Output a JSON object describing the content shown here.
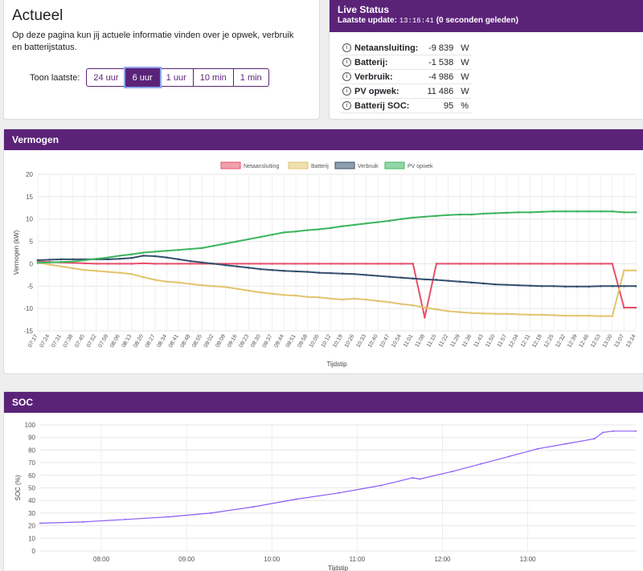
{
  "actueel": {
    "title": "Actueel",
    "description": "Op deze pagina kun jij actuele informatie vinden over je opwek, verbruik en batterijstatus.",
    "range_label": "Toon laatste:",
    "range_buttons": [
      {
        "label": "24 uur",
        "active": false
      },
      {
        "label": "6 uur",
        "active": true
      },
      {
        "label": "1 uur",
        "active": false
      },
      {
        "label": "10 min",
        "active": false
      },
      {
        "label": "1 min",
        "active": false
      }
    ]
  },
  "live": {
    "title": "Live Status",
    "update_label": "Laatste update:",
    "update_time": "13:16:41",
    "update_ago": "(0 seconden geleden)",
    "rows": [
      {
        "label": "Netaansluiting:",
        "value": "-9 839",
        "unit": "W"
      },
      {
        "label": "Batterij:",
        "value": "-1 538",
        "unit": "W"
      },
      {
        "label": "Verbruik:",
        "value": "-4 986",
        "unit": "W"
      },
      {
        "label": "PV opwek:",
        "value": "11 486",
        "unit": "W"
      },
      {
        "label": "Batterij SOC:",
        "value": "95",
        "unit": "%"
      }
    ]
  },
  "vermogen": {
    "title": "Vermogen"
  },
  "soc": {
    "title": "SOC"
  },
  "chart_data": [
    {
      "type": "line",
      "ylabel": "Vermogen (kW)",
      "xlabel": "Tijdstip",
      "ylim": [
        -15,
        20
      ],
      "yticks": [
        -15,
        -10,
        -5,
        0,
        5,
        10,
        15,
        20
      ],
      "grid": true,
      "legend": "top-center",
      "categories": [
        "07:17",
        "07:24",
        "07:31",
        "07:38",
        "07:45",
        "07:52",
        "07:59",
        "08:06",
        "08:13",
        "08:20",
        "08:27",
        "08:34",
        "08:41",
        "08:48",
        "08:55",
        "09:02",
        "09:09",
        "09:16",
        "09:23",
        "09:30",
        "09:37",
        "09:44",
        "09:51",
        "09:58",
        "10:05",
        "10:12",
        "10:19",
        "10:26",
        "10:33",
        "10:40",
        "10:47",
        "10:54",
        "11:01",
        "11:08",
        "11:15",
        "11:22",
        "11:29",
        "11:36",
        "11:43",
        "11:50",
        "11:57",
        "12:04",
        "12:11",
        "12:18",
        "12:25",
        "12:32",
        "12:39",
        "12:46",
        "12:53",
        "13:00",
        "13:07",
        "13:14"
      ],
      "series": [
        {
          "name": "Netaansluiting",
          "color": "#e8506a",
          "values": [
            0.5,
            0.4,
            0.3,
            0.2,
            0.1,
            0.0,
            0.0,
            0.0,
            0.0,
            0.1,
            0.0,
            0.0,
            0.0,
            0.0,
            0.0,
            0.0,
            0.0,
            0.0,
            0.0,
            0.0,
            0.0,
            0.0,
            0.0,
            0.0,
            0.0,
            0.0,
            0.0,
            0.0,
            0.0,
            0.0,
            0.0,
            0.0,
            0.0,
            -12.0,
            0.0,
            0.0,
            0.0,
            0.0,
            0.0,
            0.0,
            0.0,
            0.0,
            0.0,
            0.0,
            0.0,
            0.0,
            0.0,
            0.0,
            0.0,
            0.0,
            -9.8,
            -9.8
          ]
        },
        {
          "name": "Batterij",
          "color": "#e2c46e",
          "values": [
            0.3,
            -0.2,
            -0.6,
            -1.0,
            -1.4,
            -1.6,
            -1.8,
            -2.0,
            -2.3,
            -3.0,
            -3.6,
            -4.0,
            -4.2,
            -4.5,
            -4.8,
            -5.0,
            -5.2,
            -5.6,
            -6.0,
            -6.4,
            -6.7,
            -7.0,
            -7.1,
            -7.4,
            -7.5,
            -7.8,
            -8.0,
            -7.8,
            -8.0,
            -8.3,
            -8.6,
            -9.0,
            -9.3,
            -9.8,
            -10.2,
            -10.6,
            -10.8,
            -11.0,
            -11.1,
            -11.2,
            -11.2,
            -11.3,
            -11.4,
            -11.4,
            -11.5,
            -11.6,
            -11.6,
            -11.6,
            -11.7,
            -11.7,
            -1.5,
            -1.5
          ]
        },
        {
          "name": "Verbruik",
          "color": "#34506e",
          "values": [
            0.8,
            0.9,
            1.0,
            1.0,
            1.0,
            1.0,
            1.0,
            1.1,
            1.3,
            1.8,
            1.7,
            1.4,
            1.0,
            0.6,
            0.3,
            0.0,
            -0.3,
            -0.6,
            -0.9,
            -1.2,
            -1.4,
            -1.6,
            -1.7,
            -1.8,
            -2.0,
            -2.1,
            -2.2,
            -2.3,
            -2.5,
            -2.7,
            -2.9,
            -3.1,
            -3.3,
            -3.5,
            -3.6,
            -3.8,
            -4.0,
            -4.2,
            -4.4,
            -4.6,
            -4.7,
            -4.8,
            -4.9,
            -5.0,
            -5.0,
            -5.1,
            -5.1,
            -5.1,
            -5.0,
            -5.0,
            -5.0,
            -5.0
          ]
        },
        {
          "name": "PV opwek",
          "color": "#3cb55e",
          "values": [
            0.2,
            0.3,
            0.4,
            0.5,
            0.8,
            1.1,
            1.4,
            1.8,
            2.1,
            2.5,
            2.7,
            2.9,
            3.1,
            3.3,
            3.5,
            4.0,
            4.5,
            5.0,
            5.5,
            6.0,
            6.5,
            7.0,
            7.2,
            7.5,
            7.7,
            8.0,
            8.4,
            8.7,
            9.0,
            9.3,
            9.6,
            10.0,
            10.3,
            10.5,
            10.7,
            10.9,
            11.0,
            11.0,
            11.2,
            11.3,
            11.4,
            11.5,
            11.5,
            11.6,
            11.7,
            11.7,
            11.7,
            11.7,
            11.7,
            11.7,
            11.5,
            11.5
          ]
        }
      ]
    },
    {
      "type": "line",
      "ylabel": "SOC (%)",
      "xlabel": "Tijdstip",
      "ylim": [
        0,
        100
      ],
      "yticks": [
        0,
        10,
        20,
        30,
        40,
        50,
        60,
        70,
        80,
        90,
        100
      ],
      "xticks": [
        "08:00",
        "09:00",
        "10:00",
        "11:00",
        "12:00",
        "13:00"
      ],
      "grid": true,
      "x_minutes": [
        437,
        470,
        500,
        530,
        560,
        590,
        620,
        650,
        680,
        710,
        730,
        740,
        760,
        780,
        800,
        770,
        785
      ],
      "series": [
        {
          "name": "SOC",
          "color": "#8a5cf5",
          "points": [
            [
              437,
              22
            ],
            [
              467,
              23
            ],
            [
              497,
              25
            ],
            [
              527,
              27
            ],
            [
              557,
              30
            ],
            [
              587,
              35
            ],
            [
              617,
              41
            ],
            [
              647,
              46
            ],
            [
              677,
              52
            ],
            [
              699,
              58
            ],
            [
              704,
              57
            ],
            [
              727,
              63
            ],
            [
              747,
              69
            ],
            [
              767,
              75
            ],
            [
              787,
              81
            ],
            [
              807,
              85
            ],
            [
              827,
              89
            ],
            [
              833,
              94
            ],
            [
              840,
              95
            ],
            [
              856,
              95
            ]
          ]
        }
      ]
    }
  ]
}
